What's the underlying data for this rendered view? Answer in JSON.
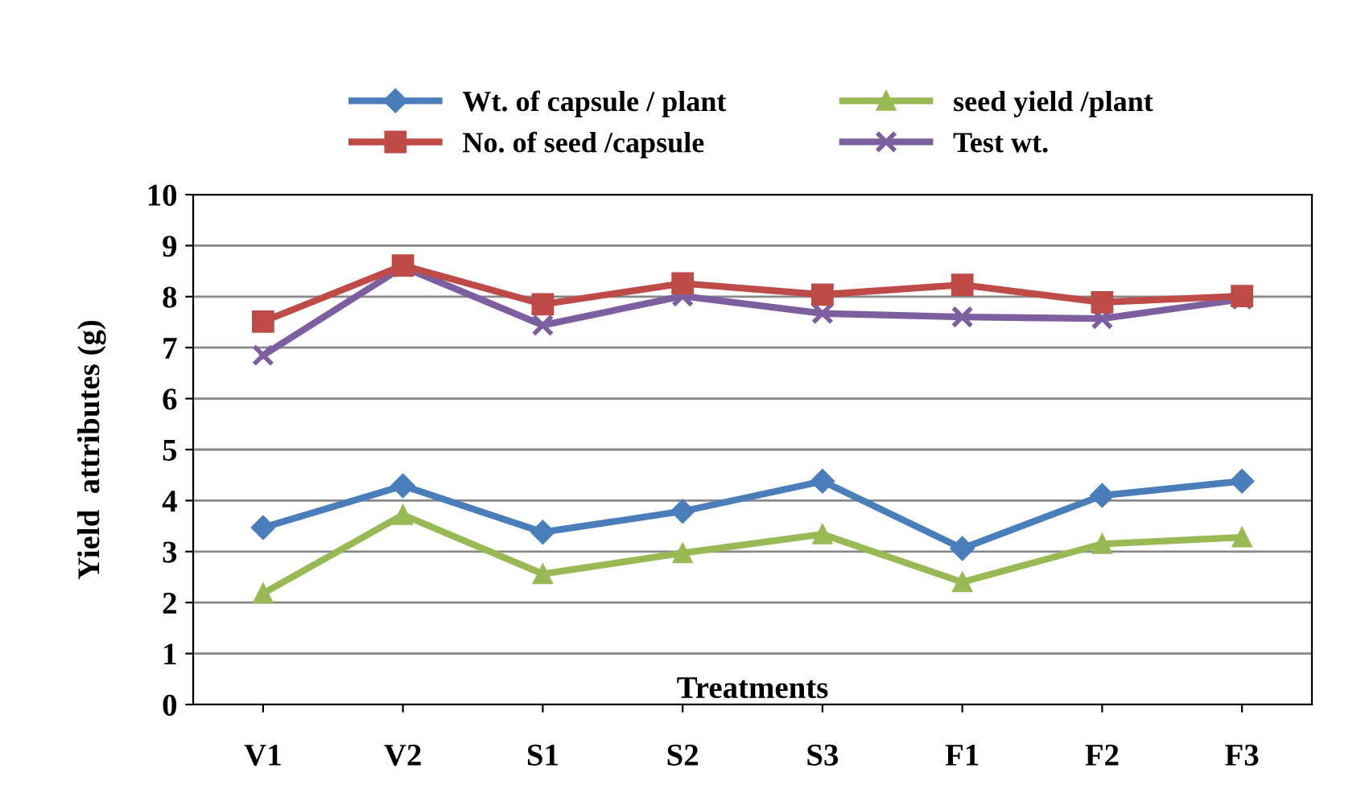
{
  "chart_data": {
    "type": "line",
    "xlabel": "Treatments",
    "ylabel": "Yield  attributes (g)",
    "categories": [
      "V1",
      "V2",
      "S1",
      "S2",
      "S3",
      "F1",
      "F2",
      "F3"
    ],
    "series": [
      {
        "name": "Wt. of capsule / plant",
        "color": "#4a7ebb",
        "marker": "diamond",
        "values": [
          3.47,
          4.29,
          3.38,
          3.79,
          4.38,
          3.06,
          4.1,
          4.38
        ]
      },
      {
        "name": "No. of seed /capsule",
        "color": "#be4b48",
        "marker": "square",
        "values": [
          7.51,
          8.61,
          7.85,
          8.26,
          8.04,
          8.23,
          7.89,
          8.01
        ]
      },
      {
        "name": "seed yield /plant",
        "color": "#98b954",
        "marker": "triangle",
        "values": [
          2.18,
          3.72,
          2.56,
          2.97,
          3.34,
          2.4,
          3.15,
          3.28
        ]
      },
      {
        "name": "Test wt.",
        "color": "#7d5fa0",
        "marker": "cross",
        "values": [
          6.85,
          8.58,
          7.44,
          8.01,
          7.67,
          7.6,
          7.57,
          7.95
        ]
      }
    ],
    "ylim": [
      0,
      10
    ],
    "yticks": [
      0,
      1,
      2,
      3,
      4,
      5,
      6,
      7,
      8,
      9,
      10
    ],
    "grid": "y",
    "legend": "top"
  }
}
